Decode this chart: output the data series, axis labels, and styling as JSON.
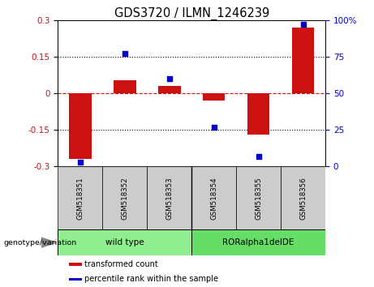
{
  "title": "GDS3720 / ILMN_1246239",
  "samples": [
    "GSM518351",
    "GSM518352",
    "GSM518353",
    "GSM518354",
    "GSM518355",
    "GSM518356"
  ],
  "red_values": [
    -0.27,
    0.052,
    0.03,
    -0.03,
    -0.17,
    0.27
  ],
  "blue_values": [
    3,
    77,
    60,
    27,
    7,
    97
  ],
  "ylim_left": [
    -0.3,
    0.3
  ],
  "ylim_right": [
    0,
    100
  ],
  "yticks_left": [
    -0.3,
    -0.15,
    0,
    0.15,
    0.3
  ],
  "yticks_right": [
    0,
    25,
    50,
    75,
    100
  ],
  "red_color": "#CC1111",
  "blue_color": "#0000CC",
  "bar_width": 0.5,
  "groups": [
    {
      "label": "wild type",
      "indices": [
        0,
        1,
        2
      ],
      "color": "#90EE90"
    },
    {
      "label": "RORalpha1delDE",
      "indices": [
        3,
        4,
        5
      ],
      "color": "#66DD66"
    }
  ],
  "genotype_label": "genotype/variation",
  "legend_items": [
    {
      "label": "transformed count",
      "color": "#CC1111"
    },
    {
      "label": "percentile rank within the sample",
      "color": "#0000CC"
    }
  ],
  "hline_color": "#CC1111",
  "dotted_color": "#000000",
  "background_color": "#FFFFFF",
  "plot_bg": "#FFFFFF",
  "tick_label_size": 7.5,
  "title_size": 10.5
}
